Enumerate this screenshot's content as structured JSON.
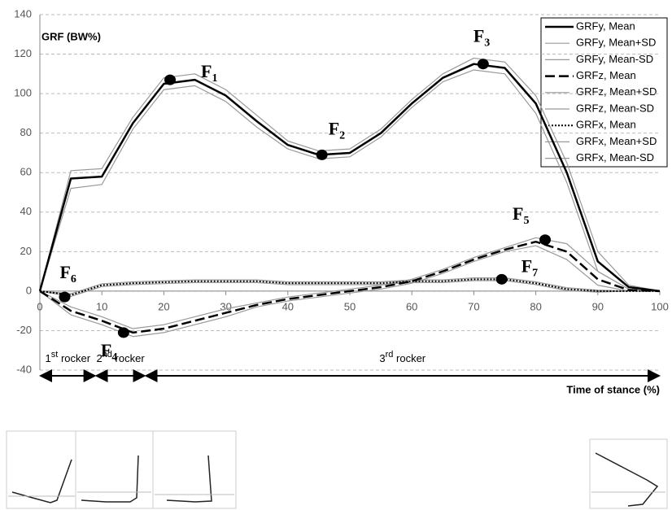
{
  "chart_data": {
    "type": "line",
    "y_label": "GRF (BW%)",
    "x_label": "Time of stance (%)",
    "xlim": [
      0,
      100
    ],
    "xticks": [
      0,
      10,
      20,
      30,
      40,
      50,
      60,
      70,
      80,
      90,
      100
    ],
    "ylim": [
      -40,
      140
    ],
    "yticks": [
      -40,
      -20,
      0,
      20,
      40,
      60,
      80,
      100,
      120,
      140
    ],
    "grid": true,
    "legend": "top-right",
    "x": [
      0,
      5,
      10,
      15,
      20,
      25,
      30,
      35,
      40,
      45,
      50,
      55,
      60,
      65,
      70,
      75,
      80,
      85,
      90,
      95,
      100
    ],
    "series": [
      {
        "name": "GRFy, Mean",
        "color": "#000000",
        "dash": "solid",
        "width": 2.5,
        "values": [
          0,
          57,
          58,
          85,
          105,
          107,
          99,
          86,
          74,
          69,
          70,
          80,
          95,
          108,
          115,
          113,
          95,
          60,
          15,
          2,
          0
        ]
      },
      {
        "name": "GRFy, Mean+SD",
        "color": "#999999",
        "dash": "solid",
        "width": 1.2,
        "values": [
          0,
          61,
          62,
          88,
          108,
          110,
          102,
          89,
          76,
          71,
          72,
          82,
          97,
          110,
          118,
          116,
          99,
          65,
          20,
          3,
          0
        ]
      },
      {
        "name": "GRFy, Mean-SD",
        "color": "#999999",
        "dash": "solid",
        "width": 1.2,
        "values": [
          0,
          52,
          54,
          82,
          102,
          104,
          96,
          83,
          72,
          67,
          68,
          78,
          93,
          106,
          112,
          110,
          90,
          55,
          10,
          1,
          0
        ]
      },
      {
        "name": "GRFz, Mean",
        "color": "#000000",
        "dash": "dash",
        "width": 2.5,
        "values": [
          0,
          -10,
          -15,
          -21,
          -19,
          -15,
          -11,
          -7,
          -4,
          -2,
          0,
          2,
          5,
          10,
          16,
          21,
          25,
          20,
          6,
          0.5,
          0
        ]
      },
      {
        "name": "GRFz, Mean+SD",
        "color": "#999999",
        "dash": "solid",
        "width": 1.2,
        "values": [
          0,
          -8,
          -13,
          -19,
          -17,
          -13,
          -9,
          -6,
          -3,
          -1,
          1,
          3,
          6,
          11,
          17,
          22,
          27,
          24,
          10,
          1,
          0
        ]
      },
      {
        "name": "GRFz, Mean-SD",
        "color": "#999999",
        "dash": "solid",
        "width": 1.2,
        "values": [
          0,
          -12,
          -17,
          -23,
          -21,
          -17,
          -13,
          -8,
          -5,
          -3,
          -1,
          1,
          4,
          9,
          15,
          20,
          23,
          16,
          3,
          0,
          0
        ]
      },
      {
        "name": "GRFx, Mean",
        "color": "#000000",
        "dash": "dot",
        "width": 2,
        "values": [
          0,
          -2,
          3,
          4,
          4.5,
          5,
          5,
          5,
          4,
          4,
          4,
          4,
          5,
          5,
          6,
          6,
          4,
          1,
          0,
          0,
          0
        ]
      },
      {
        "name": "GRFx, Mean+SD",
        "color": "#999999",
        "dash": "solid",
        "width": 1.2,
        "values": [
          0,
          -1.3,
          3.7,
          4.7,
          5.2,
          5.7,
          5.7,
          5.7,
          4.7,
          4.7,
          4.7,
          4.7,
          5.7,
          5.7,
          6.7,
          6.7,
          4.7,
          1.7,
          0.5,
          0,
          0
        ]
      },
      {
        "name": "GRFx, Mean-SD",
        "color": "#999999",
        "dash": "solid",
        "width": 1.2,
        "values": [
          0,
          -2.7,
          2.3,
          3.3,
          3.8,
          4.3,
          4.3,
          4.3,
          3.3,
          3.3,
          3.3,
          3.3,
          4.3,
          4.3,
          5.3,
          5.3,
          3.3,
          0.3,
          -0.5,
          0,
          0
        ]
      }
    ],
    "points": [
      {
        "label": "F",
        "sub": "1",
        "x": 21,
        "y": 107
      },
      {
        "label": "F",
        "sub": "2",
        "x": 45.5,
        "y": 69
      },
      {
        "label": "F",
        "sub": "3",
        "x": 71.5,
        "y": 115
      },
      {
        "label": "F",
        "sub": "4",
        "x": 13.5,
        "y": -21
      },
      {
        "label": "F",
        "sub": "5",
        "x": 81.5,
        "y": 26
      },
      {
        "label": "F",
        "sub": "6",
        "x": 4,
        "y": -3
      },
      {
        "label": "F",
        "sub": "7",
        "x": 74.5,
        "y": 6
      }
    ],
    "rockers": [
      {
        "num": "1",
        "sup": "st",
        "text": "rocker",
        "from": 0,
        "to": 9
      },
      {
        "num": "2",
        "sup": "nd",
        "text": "rocker",
        "from": 9,
        "to": 17
      },
      {
        "num": "3",
        "sup": "rd",
        "text": "rocker",
        "from": 17,
        "to": 100
      }
    ]
  }
}
